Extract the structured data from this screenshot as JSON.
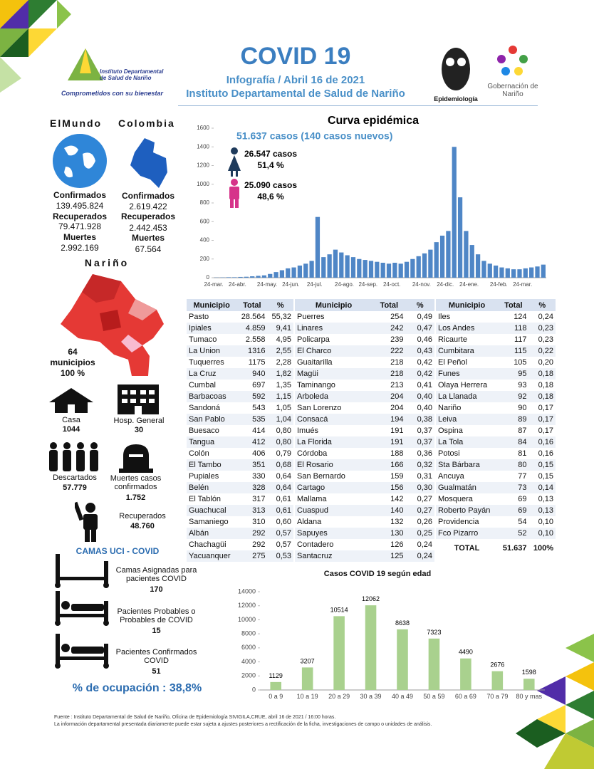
{
  "header": {
    "title": "COVID 19",
    "subtitle": "Infografía / Abril 16 de 2021",
    "institution": "Instituto Departamental de Salud de Nariño"
  },
  "logos": {
    "idsn_name": "Instituto Departamental de Salud de Nariño",
    "idsn_slogan": "Comprometidos con su bienestar",
    "epidemiology": "Epidemiología",
    "governorate": "Gobernación de Nariño"
  },
  "world": {
    "heading": "ElMundo",
    "confirmed_label": "Confirmados",
    "confirmed": "139.495.824",
    "recovered_label": "Recuperados",
    "recovered": "79.471.928",
    "deaths_label": "Muertes",
    "deaths": "2.992.169"
  },
  "colombia": {
    "heading": "Colombia",
    "confirmed_label": "Confirmados",
    "confirmed": "2.619.422",
    "recovered_label": "Recuperados",
    "recovered": "2.442.453",
    "deaths_label": "Muertes",
    "deaths": "67.564"
  },
  "narino": {
    "heading": "Nariño",
    "municipalities_count": "64",
    "municipalities_label": "municipios",
    "municipalities_pct": "100 %",
    "home_label": "Casa",
    "home": "1044",
    "hospital_label": "Hosp. General",
    "hospital": "30",
    "discarded_label": "Descartados",
    "discarded": "57.779",
    "deaths_label": "Muertes casos confirmados",
    "deaths": "1.752",
    "recovered_label": "Recuperados",
    "recovered": "48.760"
  },
  "icu": {
    "heading": "CAMAS UCI - COVID",
    "assigned_label": "Camas Asignadas para pacientes COVID",
    "assigned": "170",
    "probable_label": "Pacientes Probables o Probables de COVID",
    "probable": "15",
    "confirmed_label": "Pacientes Confirmados COVID",
    "confirmed": "51",
    "occupancy": "% de ocupación : 38,8%"
  },
  "sex": {
    "female_cases": "26.547 casos",
    "female_pct": "51,4 %",
    "male_cases": "25.090 casos",
    "male_pct": "48,6 %"
  },
  "municipios": {
    "header": [
      "Municipio",
      "Total",
      "%"
    ],
    "columns": [
      [
        [
          "Pasto",
          "28.564",
          "55,32"
        ],
        [
          "Ipiales",
          "4.859",
          "9,41"
        ],
        [
          "Tumaco",
          "2.558",
          "4,95"
        ],
        [
          "La Union",
          "1316",
          "2,55"
        ],
        [
          "Tuquerres",
          "1175",
          "2,28"
        ],
        [
          "La Cruz",
          "940",
          "1,82"
        ],
        [
          "Cumbal",
          "697",
          "1,35"
        ],
        [
          "Barbacoas",
          "592",
          "1,15"
        ],
        [
          "Sandoná",
          "543",
          "1,05"
        ],
        [
          "San Pablo",
          "535",
          "1,04"
        ],
        [
          "Buesaco",
          "414",
          "0,80"
        ],
        [
          "Tangua",
          "412",
          "0,80"
        ],
        [
          "Colón",
          "406",
          "0,79"
        ],
        [
          "El Tambo",
          "351",
          "0,68"
        ],
        [
          "Pupiales",
          "330",
          "0,64"
        ],
        [
          "Belén",
          "328",
          "0,64"
        ],
        [
          "El Tablón",
          "317",
          "0,61"
        ],
        [
          "Guachucal",
          "313",
          "0,61"
        ],
        [
          "Samaniego",
          "310",
          "0,60"
        ],
        [
          "Albán",
          "292",
          "0,57"
        ],
        [
          "Chachagüi",
          "292",
          "0,57"
        ],
        [
          "Yacuanquer",
          "275",
          "0,53"
        ]
      ],
      [
        [
          "Puerres",
          "254",
          "0,49"
        ],
        [
          "Linares",
          "242",
          "0,47"
        ],
        [
          "Policarpa",
          "239",
          "0,46"
        ],
        [
          "El Charco",
          "222",
          "0,43"
        ],
        [
          "Guaitarilla",
          "218",
          "0,42"
        ],
        [
          "Magüi",
          "218",
          "0,42"
        ],
        [
          "Taminango",
          "213",
          "0,41"
        ],
        [
          "Arboleda",
          "204",
          "0,40"
        ],
        [
          "San Lorenzo",
          "204",
          "0,40"
        ],
        [
          "Consacá",
          "194",
          "0,38"
        ],
        [
          "Imués",
          "191",
          "0,37"
        ],
        [
          "La Florida",
          "191",
          "0,37"
        ],
        [
          "Córdoba",
          "188",
          "0,36"
        ],
        [
          "El Rosario",
          "166",
          "0,32"
        ],
        [
          "San Bernardo",
          "159",
          "0,31"
        ],
        [
          "Cartago",
          "156",
          "0,30"
        ],
        [
          "Mallama",
          "142",
          "0,27"
        ],
        [
          "Cuaspud",
          "140",
          "0,27"
        ],
        [
          "Aldana",
          "132",
          "0,26"
        ],
        [
          "Sapuyes",
          "130",
          "0,25"
        ],
        [
          "Contadero",
          "126",
          "0,24"
        ],
        [
          "Santacruz",
          "125",
          "0,24"
        ]
      ],
      [
        [
          "Iles",
          "124",
          "0,24"
        ],
        [
          "Los Andes",
          "118",
          "0,23"
        ],
        [
          "Ricaurte",
          "117",
          "0,23"
        ],
        [
          "Cumbitara",
          "115",
          "0,22"
        ],
        [
          "El Peñol",
          "105",
          "0,20"
        ],
        [
          "Funes",
          "95",
          "0,18"
        ],
        [
          "Olaya Herrera",
          "93",
          "0,18"
        ],
        [
          "La Llanada",
          "92",
          "0,18"
        ],
        [
          "Nariño",
          "90",
          "0,17"
        ],
        [
          "Leiva",
          "89",
          "0,17"
        ],
        [
          "Ospina",
          "87",
          "0,17"
        ],
        [
          "La Tola",
          "84",
          "0,16"
        ],
        [
          "Potosi",
          "81",
          "0,16"
        ],
        [
          "Sta Bárbara",
          "80",
          "0,15"
        ],
        [
          "Ancuya",
          "77",
          "0,15"
        ],
        [
          "Gualmatán",
          "73",
          "0,14"
        ],
        [
          "Mosquera",
          "69",
          "0,13"
        ],
        [
          "Roberto Payán",
          "69",
          "0,13"
        ],
        [
          "Providencia",
          "54",
          "0,10"
        ],
        [
          "Fco Pizarro",
          "52",
          "0,10"
        ]
      ]
    ],
    "total": [
      "TOTAL",
      "51.637",
      "100%"
    ]
  },
  "chart_data": [
    {
      "type": "bar",
      "title": "Curva epidémica",
      "annotation": "51.637 casos (140 casos nuevos)",
      "color": "#4f86c6",
      "categories": [
        "24-mar.",
        null,
        null,
        null,
        "24-abr.",
        null,
        null,
        null,
        null,
        "24-may.",
        null,
        null,
        null,
        "24-jun.",
        null,
        null,
        null,
        "24-jul.",
        null,
        null,
        null,
        null,
        "24-ago.",
        null,
        null,
        null,
        "24-sep.",
        null,
        null,
        null,
        "24-oct.",
        null,
        null,
        null,
        null,
        "24-nov.",
        null,
        null,
        null,
        "24-dic.",
        null,
        null,
        null,
        "24-ene.",
        null,
        null,
        null,
        null,
        "24-feb.",
        null,
        null,
        null,
        "24-mar.",
        null,
        null,
        null
      ],
      "values": [
        2,
        3,
        5,
        5,
        8,
        10,
        15,
        20,
        25,
        40,
        60,
        80,
        100,
        110,
        130,
        150,
        180,
        650,
        220,
        250,
        300,
        270,
        240,
        220,
        200,
        190,
        180,
        170,
        160,
        150,
        160,
        150,
        170,
        200,
        230,
        260,
        300,
        380,
        450,
        500,
        1400,
        860,
        500,
        350,
        250,
        180,
        150,
        130,
        110,
        100,
        90,
        90,
        100,
        110,
        120,
        140
      ],
      "ylim": [
        0,
        1600
      ],
      "yticks": [
        0,
        200,
        400,
        600,
        800,
        1000,
        1200,
        1400,
        1600
      ]
    },
    {
      "type": "bar",
      "title": "Casos COVID 19  según edad",
      "color": "#a9d18e",
      "categories": [
        "0 a 9",
        "10 a 19",
        "20 a 29",
        "30 a 39",
        "40 a 49",
        "50 a 59",
        "60 a 69",
        "70 a 79",
        "80 y mas"
      ],
      "values": [
        1129,
        3207,
        10514,
        12062,
        8638,
        7323,
        4490,
        2676,
        1598
      ],
      "ylim": [
        0,
        14000
      ],
      "yticks": [
        0,
        2000,
        4000,
        6000,
        8000,
        10000,
        12000,
        14000
      ]
    }
  ],
  "footer": [
    "Fuente : Instituto Departamental de Salud de Nariño, Oficina de Epidemiología SIVIGILA,CRUE,  abril 16 de 2021 / 16:00  horas.",
    "La información departamental presentada diariamente puede estar sujeta a ajustes posteriores a  rectificación de la ficha, investigaciones de campo o unidades de análisis."
  ]
}
